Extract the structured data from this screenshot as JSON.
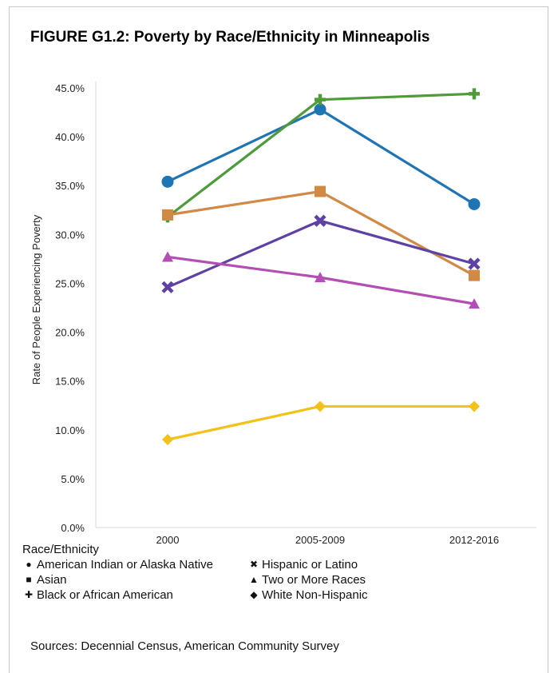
{
  "title": "FIGURE G1.2: Poverty by Race/Ethnicity in Minneapolis",
  "source": "Sources: Decennial Census, American Community Survey",
  "legend": {
    "title": "Race/Ethnicity",
    "items": [
      {
        "symbol": "●",
        "label": "American Indian or Alaska Native"
      },
      {
        "symbol": "✖",
        "label": "Hispanic or Latino"
      },
      {
        "symbol": "■",
        "label": "Asian"
      },
      {
        "symbol": "▲",
        "label": "Two or More Races"
      },
      {
        "symbol": "✚",
        "label": "Black or African American"
      },
      {
        "symbol": "◆",
        "label": "White Non-Hispanic"
      }
    ]
  },
  "chart_data": {
    "type": "line",
    "ylabel": "Rate of People Experiencing Poverty",
    "categories": [
      "2000",
      "2005-2009",
      "2012-2016"
    ],
    "ylim": [
      0,
      45
    ],
    "yticks": [
      "0.0%",
      "5.0%",
      "10.0%",
      "15.0%",
      "20.0%",
      "25.0%",
      "30.0%",
      "35.0%",
      "40.0%",
      "45.0%"
    ],
    "grid": false,
    "legend_position": "bottom",
    "series": [
      {
        "name": "American Indian or Alaska Native",
        "marker": "circle",
        "color": "#1f74b4",
        "values": [
          35.4,
          42.8,
          33.1
        ]
      },
      {
        "name": "Black or African American",
        "marker": "plus",
        "color": "#4f9a3a",
        "values": [
          31.8,
          43.8,
          44.4
        ]
      },
      {
        "name": "Asian",
        "marker": "square",
        "color": "#d08a45",
        "values": [
          32.0,
          34.4,
          25.8
        ]
      },
      {
        "name": "Hispanic or Latino",
        "marker": "x",
        "color": "#5d41a4",
        "values": [
          24.6,
          31.4,
          27.0
        ]
      },
      {
        "name": "Two or More Races",
        "marker": "triangle",
        "color": "#b34fb4",
        "values": [
          27.7,
          25.6,
          22.9
        ]
      },
      {
        "name": "White Non-Hispanic",
        "marker": "diamond",
        "color": "#f2c218",
        "values": [
          9.0,
          12.4,
          12.4
        ]
      }
    ]
  }
}
